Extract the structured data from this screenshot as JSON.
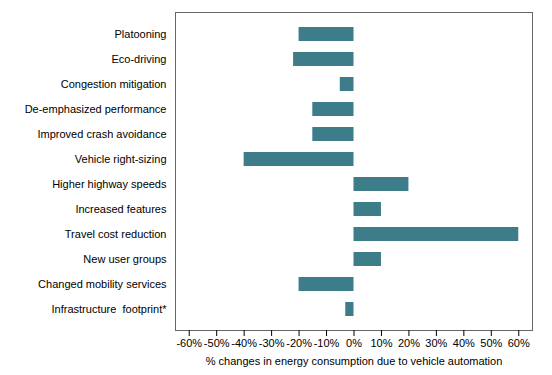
{
  "chart_data": {
    "type": "bar",
    "orientation": "horizontal",
    "categories": [
      "Platooning",
      "Eco-driving",
      "Congestion mitigation",
      "De-emphasized performance",
      "Improved crash avoidance",
      "Vehicle right-sizing",
      "Higher highway speeds",
      "Increased features",
      "Travel cost reduction",
      "New user groups",
      "Changed mobility services",
      "Infrastructure  footprint*"
    ],
    "values": [
      -20,
      -22,
      -5,
      -15,
      -15,
      -40,
      20,
      10,
      60,
      10,
      -20,
      -3
    ],
    "color": "#3d7d8a",
    "xlabel": "% changes in energy consumption due to vehicle automation",
    "xlim": [
      -65,
      65
    ],
    "xticks": [
      {
        "value": -60,
        "label": "-60%"
      },
      {
        "value": -50,
        "label": "-50%"
      },
      {
        "value": -40,
        "label": "-40%"
      },
      {
        "value": -30,
        "label": "-30%"
      },
      {
        "value": -20,
        "label": "-20%"
      },
      {
        "value": -10,
        "label": "-10%"
      },
      {
        "value": 0,
        "label": "0%"
      },
      {
        "value": 10,
        "label": "10%"
      },
      {
        "value": 20,
        "label": "20%"
      },
      {
        "value": 30,
        "label": "30%"
      },
      {
        "value": 40,
        "label": "40%"
      },
      {
        "value": 50,
        "label": "50%"
      },
      {
        "value": 60,
        "label": "60%"
      }
    ],
    "grid": false
  }
}
